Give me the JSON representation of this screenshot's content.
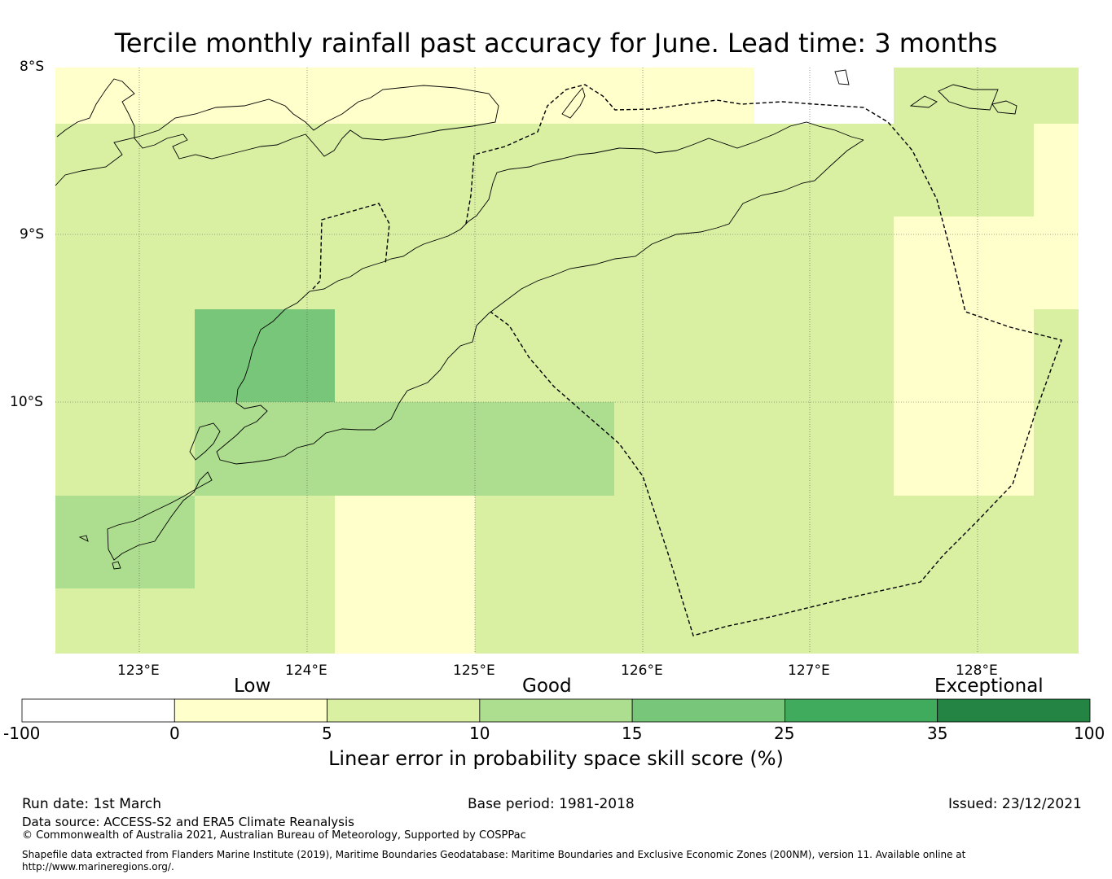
{
  "title": "Tercile monthly rainfall past accuracy for June. Lead time: 3 months",
  "map": {
    "lat_labels": [
      "8°S",
      "9°S",
      "10°S"
    ],
    "lon_labels": [
      "123°E",
      "124°E",
      "125°E",
      "126°E",
      "127°E",
      "128°E"
    ],
    "colors": {
      "no_data": "#ffffff",
      "c0_5": "#ffffcc",
      "c5_10": "#d9f0a3",
      "c10_15": "#addd8e",
      "c15_25": "#78c679",
      "c25_35": "#41ab5d",
      "c35_100": "#238443"
    }
  },
  "colorbar": {
    "categories": [
      "Low",
      "Good",
      "Exceptional"
    ],
    "ticks": [
      "-100",
      "0",
      "5",
      "10",
      "15",
      "25",
      "35",
      "100"
    ],
    "colors": [
      "#ffffff",
      "#ffffcc",
      "#d9f0a3",
      "#addd8e",
      "#78c679",
      "#41ab5d",
      "#238443"
    ],
    "label": "Linear error in probability space skill score (%)"
  },
  "footer": {
    "run_date": "Run date: 1st March",
    "base_period": "Base period: 1981-2018",
    "issued": "Issued: 23/12/2021",
    "data_source": "Data source: ACCESS-S2 and ERA5 Climate Reanalysis",
    "copyright": "© Commonwealth of Australia 2021, Australian Bureau of Meteorology, Supported by COSPPac",
    "shapefile_line1": "Shapefile data extracted from Flanders Marine Institute (2019), Maritime Boundaries Geodatabase: Maritime Boundaries and Exclusive Economic Zones (200NM), version 11. Available online at",
    "shapefile_line2": "http://www.marineregions.org/."
  }
}
